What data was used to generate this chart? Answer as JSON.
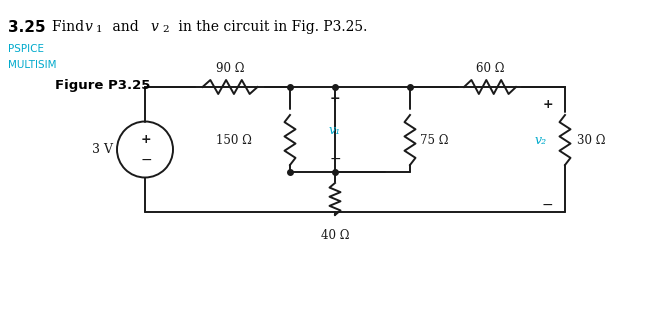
{
  "title_num": "3.25",
  "title_text": "Find ",
  "title_v1": "v",
  "title_v1_sub": "1",
  "title_mid": " and ",
  "title_v2": "v",
  "title_v2_sub": "2",
  "title_end": " in the circuit in Fig. P3.25.",
  "pspice_label": "PSPICE",
  "multisim_label": "MULTISIM",
  "figure_label": "Figure P3.25",
  "bg_color": "#ffffff",
  "circuit_color": "#1a1a1a",
  "cyan_color": "#00aacc",
  "label_color": "#00aacc",
  "res_90": "90 Ω",
  "res_150": "150 Ω",
  "res_75": "75 Ω",
  "res_40": "40 Ω",
  "res_60": "60 Ω",
  "res_30": "30 Ω",
  "v_source": "3 V",
  "v1_label": "v₁",
  "v2_label": "v₂"
}
